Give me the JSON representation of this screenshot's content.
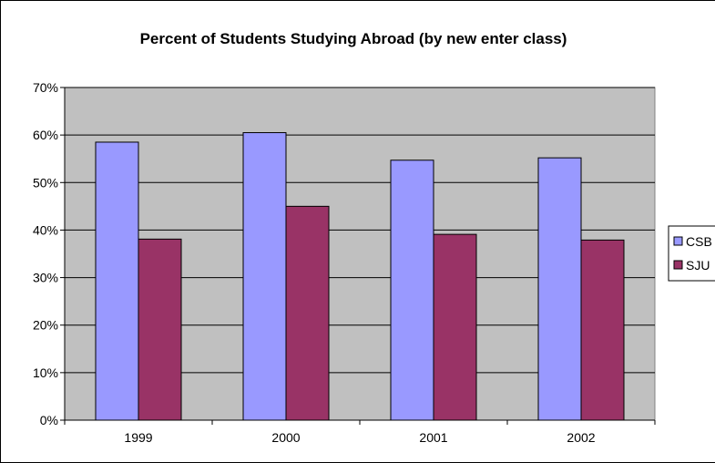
{
  "chart_data": {
    "type": "bar",
    "title": "Percent of Students Studying Abroad (by new enter class)",
    "xlabel": "",
    "ylabel": "",
    "categories": [
      "1999",
      "2000",
      "2001",
      "2002"
    ],
    "series": [
      {
        "name": "CSB",
        "color": "#9999ff",
        "values": [
          58.5,
          60.5,
          54.7,
          55.2
        ]
      },
      {
        "name": "SJU",
        "color": "#993366",
        "values": [
          38.1,
          45.0,
          39.1,
          37.9
        ]
      }
    ],
    "ylim": [
      0,
      70
    ],
    "y_ticks": [
      "0%",
      "10%",
      "20%",
      "30%",
      "40%",
      "50%",
      "60%",
      "70%"
    ],
    "grid": true,
    "plot_background": "#c0c0c0",
    "legend": "right"
  }
}
